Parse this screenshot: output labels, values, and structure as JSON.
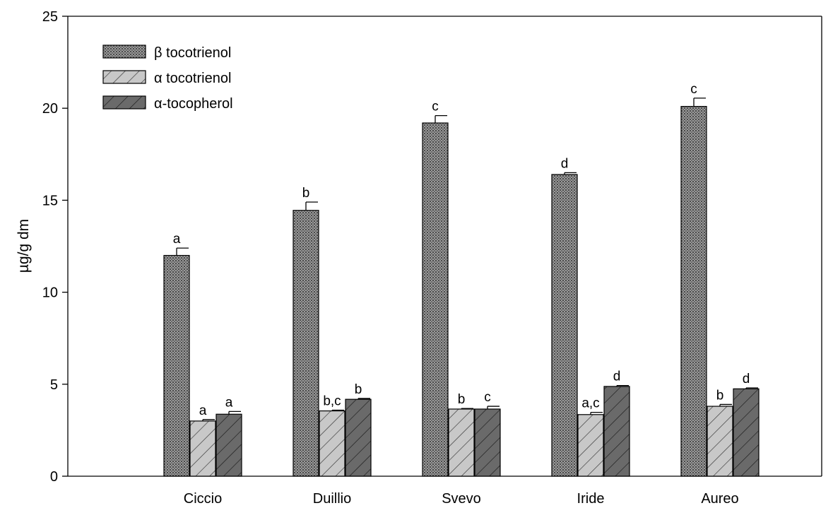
{
  "chart_data": {
    "type": "bar",
    "title": "",
    "xlabel": "",
    "ylabel": "µg/g dm",
    "ylim": [
      0,
      25
    ],
    "yticks": [
      0,
      5,
      10,
      15,
      20,
      25
    ],
    "grid": false,
    "legend_position": "top-left",
    "categories": [
      "Ciccio",
      "Duillio",
      "Svevo",
      "Iride",
      "Aureo"
    ],
    "series": [
      {
        "name": "β tocotrienol",
        "fill": "dense-dotted",
        "color": "#8c8c8c",
        "values": [
          12.0,
          14.45,
          19.2,
          16.4,
          20.1
        ],
        "errors": [
          0.4,
          0.45,
          0.4,
          0.1,
          0.45
        ],
        "letters": [
          "a",
          "b",
          "c",
          "d",
          "c"
        ]
      },
      {
        "name": "α tocotrienol",
        "fill": "diagonal-hatch-light",
        "color": "#c8c8c8",
        "values": [
          3.0,
          3.55,
          3.65,
          3.35,
          3.8
        ],
        "errors": [
          0.08,
          0.04,
          0.03,
          0.12,
          0.1
        ],
        "letters": [
          "a",
          "b,c",
          "b",
          "a,c",
          "b"
        ]
      },
      {
        "name": "α-tocopherol",
        "fill": "diagonal-hatch-dark",
        "color": "#6a6a6a",
        "values": [
          3.37,
          4.18,
          3.65,
          4.88,
          4.75
        ],
        "errors": [
          0.15,
          0.05,
          0.15,
          0.05,
          0.05
        ],
        "letters": [
          "a",
          "b",
          "c",
          "d",
          "d"
        ]
      }
    ]
  }
}
